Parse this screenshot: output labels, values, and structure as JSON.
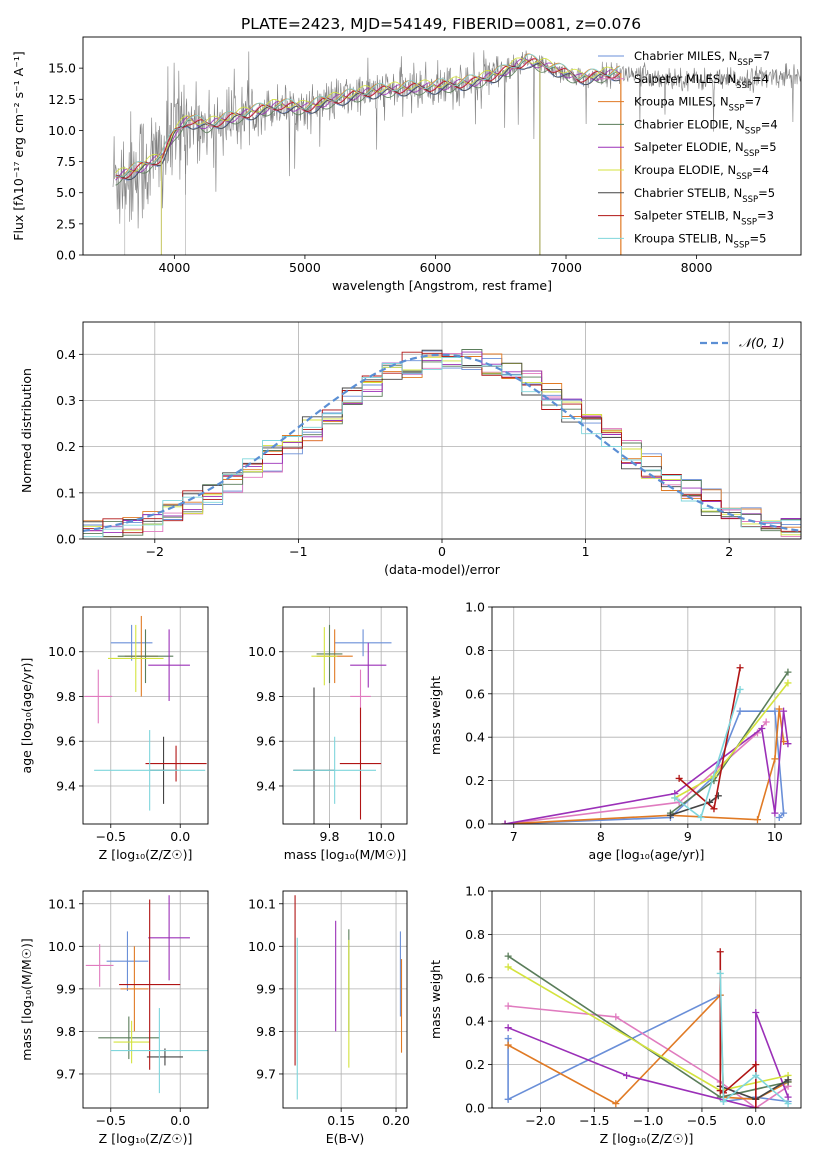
{
  "figure": {
    "title": "PLATE=2423, MJD=54149, FIBERID=0081, z=0.076"
  },
  "legend": [
    {
      "label": "Chabrier MILES, N",
      "sub": "SSP",
      "tail": "=7",
      "color": "#6a8fd8"
    },
    {
      "label": "Salpeter MILES, N",
      "sub": "SSP",
      "tail": "=4",
      "color": "#e07bbf"
    },
    {
      "label": "Kroupa MILES, N",
      "sub": "SSP",
      "tail": "=7",
      "color": "#e07a24"
    },
    {
      "label": "Chabrier ELODIE, N",
      "sub": "SSP",
      "tail": "=4",
      "color": "#5a7d5a"
    },
    {
      "label": "Salpeter ELODIE, N",
      "sub": "SSP",
      "tail": "=5",
      "color": "#9b30b8"
    },
    {
      "label": "Kroupa ELODIE, N",
      "sub": "SSP",
      "tail": "=4",
      "color": "#d4e33e"
    },
    {
      "label": "Chabrier STELIB, N",
      "sub": "SSP",
      "tail": "=5",
      "color": "#444444"
    },
    {
      "label": "Salpeter STELIB, N",
      "sub": "SSP",
      "tail": "=3",
      "color": "#b01515"
    },
    {
      "label": "Kroupa STELIB, N",
      "sub": "SSP",
      "tail": "=5",
      "color": "#7fd6dc"
    }
  ],
  "chart_data": [
    {
      "id": "spectrum",
      "type": "line",
      "xlabel": "wavelength [Angstrom, rest frame]",
      "ylabel": "Flux [fλ10⁻¹⁷ erg cm⁻² s⁻¹ A⁻¹]",
      "xlim": [
        3300,
        8800
      ],
      "ylim": [
        0,
        17.5
      ],
      "xticks": [
        4000,
        5000,
        6000,
        7000,
        8000
      ],
      "yticks": [
        0.0,
        2.5,
        5.0,
        7.5,
        10.0,
        12.5,
        15.0
      ],
      "grid": false,
      "legend_position": "right",
      "data_color": "#808080",
      "continuum_x": [
        3550,
        3700,
        3900,
        4000,
        4100,
        4250,
        4500,
        4800,
        5000,
        5200,
        5500,
        5800,
        6000,
        6300,
        6500,
        6700,
        6900,
        7100,
        7400,
        7800,
        8200,
        8800
      ],
      "continuum_y": [
        6.2,
        6.8,
        7.8,
        9.8,
        10.8,
        10.4,
        11.2,
        12.0,
        11.8,
        12.4,
        13.1,
        13.4,
        13.5,
        13.9,
        14.6,
        15.6,
        15.0,
        14.2,
        14.6,
        14.2,
        14.0,
        14.5
      ]
    },
    {
      "id": "residuals",
      "type": "histogram",
      "xlabel": "(data-model)/error",
      "ylabel": "Normed distribution",
      "xlim": [
        -2.5,
        2.5
      ],
      "ylim": [
        0,
        0.47
      ],
      "xticks": [
        -2,
        -1,
        0,
        1,
        2
      ],
      "yticks": [
        0.0,
        0.1,
        0.2,
        0.3,
        0.4
      ],
      "grid": true,
      "legend_position": "top-right",
      "reference_label": "𝒩(0, 1)",
      "reference_color": "#5b8fd4",
      "bins": 36,
      "bin_range": [
        -2.5,
        2.5
      ]
    },
    {
      "id": "age-vs-Z",
      "type": "scatter",
      "xlabel": "Z [log₁₀(Z/Z☉)]",
      "ylabel": "age  [log₁₀(age/yr)]",
      "xlim": [
        -0.7,
        0.2
      ],
      "ylim": [
        9.23,
        10.2
      ],
      "xticks": [
        -0.5,
        0.0
      ],
      "yticks": [
        9.4,
        9.6,
        9.8,
        10.0
      ],
      "grid": true,
      "points": [
        {
          "x": -0.35,
          "y": 10.04,
          "xerr": 0.15,
          "yerr": 0.08,
          "color": "#6a8fd8"
        },
        {
          "x": -0.59,
          "y": 9.8,
          "xerr": 0.1,
          "yerr": 0.12,
          "color": "#e07bbf"
        },
        {
          "x": -0.28,
          "y": 9.98,
          "xerr": 0.12,
          "yerr": 0.18,
          "color": "#e07a24"
        },
        {
          "x": -0.25,
          "y": 9.98,
          "xerr": 0.2,
          "yerr": 0.12,
          "color": "#5a7d5a"
        },
        {
          "x": -0.08,
          "y": 9.94,
          "xerr": 0.15,
          "yerr": 0.16,
          "color": "#9b30b8"
        },
        {
          "x": -0.32,
          "y": 9.97,
          "xerr": 0.2,
          "yerr": 0.15,
          "color": "#d4e33e"
        },
        {
          "x": -0.12,
          "y": 9.47,
          "xerr": 0.1,
          "yerr": 0.15,
          "color": "#444444"
        },
        {
          "x": -0.03,
          "y": 9.5,
          "xerr": 0.22,
          "yerr": 0.08,
          "color": "#b01515"
        },
        {
          "x": -0.22,
          "y": 9.47,
          "xerr": 0.4,
          "yerr": 0.18,
          "color": "#7fd6dc"
        }
      ]
    },
    {
      "id": "age-vs-mass",
      "type": "scatter",
      "xlabel": "mass [log₁₀(M/M☉)]",
      "ylabel": "",
      "xlim": [
        9.62,
        10.1
      ],
      "ylim": [
        9.23,
        10.2
      ],
      "xticks": [
        9.8,
        10.0
      ],
      "yticks": [
        9.4,
        9.6,
        9.8,
        10.0
      ],
      "grid": true,
      "points": [
        {
          "x": 9.93,
          "y": 10.04,
          "xerr": 0.11,
          "yerr": 0.06,
          "color": "#6a8fd8"
        },
        {
          "x": 9.92,
          "y": 9.8,
          "xerr": 0.04,
          "yerr": 0.12,
          "color": "#e07bbf"
        },
        {
          "x": 9.82,
          "y": 9.98,
          "xerr": 0.07,
          "yerr": 0.12,
          "color": "#e07a24"
        },
        {
          "x": 9.8,
          "y": 9.99,
          "xerr": 0.05,
          "yerr": 0.13,
          "color": "#5a7d5a"
        },
        {
          "x": 9.95,
          "y": 9.94,
          "xerr": 0.07,
          "yerr": 0.1,
          "color": "#9b30b8"
        },
        {
          "x": 9.78,
          "y": 9.98,
          "xerr": 0.05,
          "yerr": 0.13,
          "color": "#d4e33e"
        },
        {
          "x": 9.74,
          "y": 9.47,
          "xerr": 0.08,
          "yerr": 0.37,
          "color": "#444444"
        },
        {
          "x": 9.92,
          "y": 9.5,
          "xerr": 0.08,
          "yerr": 0.25,
          "color": "#b01515"
        },
        {
          "x": 9.82,
          "y": 9.47,
          "xerr": 0.16,
          "yerr": 0.15,
          "color": "#7fd6dc"
        }
      ]
    },
    {
      "id": "weight-vs-age",
      "type": "line",
      "xlabel": "age  [log₁₀(age/yr)]",
      "ylabel": "mass weight",
      "xlim": [
        6.75,
        10.3
      ],
      "ylim": [
        0,
        1.0
      ],
      "xticks": [
        7,
        8,
        9,
        10
      ],
      "yticks": [
        0.0,
        0.2,
        0.4,
        0.6,
        0.8,
        1.0
      ],
      "grid": true,
      "series": [
        {
          "color": "#6a8fd8",
          "x": [
            6.9,
            8.8,
            9.3,
            9.6,
            10.0,
            10.1,
            10.05
          ],
          "y": [
            0.0,
            0.03,
            0.22,
            0.52,
            0.52,
            0.05,
            0.03
          ]
        },
        {
          "color": "#e07bbf",
          "x": [
            6.9,
            8.9,
            9.8,
            9.9
          ],
          "y": [
            0.0,
            0.1,
            0.42,
            0.47
          ]
        },
        {
          "color": "#e07a24",
          "x": [
            6.9,
            8.8,
            9.8,
            10.0,
            10.05,
            10.1
          ],
          "y": [
            0.0,
            0.04,
            0.02,
            0.3,
            0.53,
            0.38
          ]
        },
        {
          "color": "#5a7d5a",
          "x": [
            8.8,
            9.3,
            10.15
          ],
          "y": [
            0.05,
            0.2,
            0.7
          ]
        },
        {
          "color": "#9b30b8",
          "x": [
            6.9,
            8.85,
            9.85,
            10.0,
            10.1,
            10.15
          ],
          "y": [
            0.0,
            0.14,
            0.44,
            0.05,
            0.52,
            0.37
          ]
        },
        {
          "color": "#d4e33e",
          "x": [
            8.85,
            9.3,
            10.15
          ],
          "y": [
            0.12,
            0.22,
            0.65
          ]
        },
        {
          "color": "#444444",
          "x": [
            8.8,
            9.25,
            9.35
          ],
          "y": [
            0.04,
            0.1,
            0.13
          ]
        },
        {
          "color": "#b01515",
          "x": [
            8.9,
            9.3,
            9.6
          ],
          "y": [
            0.21,
            0.07,
            0.72
          ]
        },
        {
          "color": "#7fd6dc",
          "x": [
            8.85,
            9.15,
            9.6
          ],
          "y": [
            0.12,
            0.03,
            0.62
          ]
        }
      ]
    },
    {
      "id": "mass-vs-Z",
      "type": "scatter",
      "xlabel": "Z [log₁₀(Z/Z☉)]",
      "ylabel": "mass [log₁₀(M/M☉)]",
      "xlim": [
        -0.7,
        0.2
      ],
      "ylim": [
        9.62,
        10.13
      ],
      "xticks": [
        -0.5,
        0.0
      ],
      "yticks": [
        9.7,
        9.8,
        9.9,
        10.0,
        10.1
      ],
      "grid": true,
      "points": [
        {
          "x": -0.38,
          "y": 9.965,
          "xerr": 0.15,
          "yerr": 0.07,
          "color": "#6a8fd8"
        },
        {
          "x": -0.58,
          "y": 9.955,
          "xerr": 0.1,
          "yerr": 0.05,
          "color": "#e07bbf"
        },
        {
          "x": -0.33,
          "y": 9.9,
          "xerr": 0.1,
          "yerr": 0.1,
          "color": "#e07a24"
        },
        {
          "x": -0.37,
          "y": 9.785,
          "xerr": 0.22,
          "yerr": 0.05,
          "color": "#5a7d5a"
        },
        {
          "x": -0.08,
          "y": 10.02,
          "xerr": 0.15,
          "yerr": 0.1,
          "color": "#9b30b8"
        },
        {
          "x": -0.35,
          "y": 9.775,
          "xerr": 0.13,
          "yerr": 0.05,
          "color": "#d4e33e"
        },
        {
          "x": -0.11,
          "y": 9.74,
          "xerr": 0.13,
          "yerr": 0.02,
          "color": "#444444"
        },
        {
          "x": -0.22,
          "y": 9.91,
          "xerr": 0.22,
          "yerr": 0.2,
          "color": "#b01515"
        },
        {
          "x": -0.15,
          "y": 9.755,
          "xerr": 0.35,
          "yerr": 0.1,
          "color": "#7fd6dc"
        }
      ]
    },
    {
      "id": "mass-vs-EBV",
      "type": "scatter",
      "xlabel": "E(B-V)",
      "ylabel": "",
      "xlim": [
        0.097,
        0.21
      ],
      "ylim": [
        9.62,
        10.13
      ],
      "xticks": [
        0.15,
        0.2
      ],
      "yticks": [
        9.7,
        9.8,
        9.9,
        10.0,
        10.1
      ],
      "grid": true,
      "points": [
        {
          "x": 0.108,
          "y": 9.92,
          "xerr": 0.0,
          "yerr": 0.2,
          "color": "#b01515"
        },
        {
          "x": 0.11,
          "y": 9.83,
          "xerr": 0.0,
          "yerr": 0.19,
          "color": "#7fd6dc"
        },
        {
          "x": 0.145,
          "y": 9.93,
          "xerr": 0.0,
          "yerr": 0.13,
          "color": "#9b30b8"
        },
        {
          "x": 0.157,
          "y": 9.92,
          "xerr": 0.0,
          "yerr": 0.12,
          "color": "#5a7d5a"
        },
        {
          "x": 0.157,
          "y": 9.865,
          "xerr": 0.0,
          "yerr": 0.15,
          "color": "#d4e33e"
        },
        {
          "x": 0.204,
          "y": 9.935,
          "xerr": 0.0,
          "yerr": 0.1,
          "color": "#6a8fd8"
        },
        {
          "x": 0.205,
          "y": 9.86,
          "xerr": 0.0,
          "yerr": 0.11,
          "color": "#e07a24"
        }
      ]
    },
    {
      "id": "weight-vs-Z",
      "type": "line",
      "xlabel": "Z [log₁₀(Z/Z☉)]",
      "ylabel": "mass weight",
      "xlim": [
        -2.45,
        0.42
      ],
      "ylim": [
        0,
        1.0
      ],
      "xticks": [
        -2.0,
        -1.5,
        -1.0,
        -0.5,
        0.0
      ],
      "yticks": [
        0.0,
        0.2,
        0.4,
        0.6,
        0.8,
        1.0
      ],
      "grid": true,
      "series": [
        {
          "color": "#6a8fd8",
          "x": [
            -2.3,
            -2.3,
            -0.33,
            -0.3,
            0.0,
            0.3
          ],
          "y": [
            0.32,
            0.04,
            0.52,
            0.03,
            0.05,
            0.03
          ]
        },
        {
          "color": "#e07bbf",
          "x": [
            -2.3,
            -1.3,
            -0.33,
            0.0,
            0.3
          ],
          "y": [
            0.47,
            0.42,
            0.12,
            0.0,
            0.1
          ]
        },
        {
          "color": "#e07a24",
          "x": [
            -2.3,
            -1.3,
            -0.33,
            -0.3,
            0.0,
            0.3
          ],
          "y": [
            0.29,
            0.02,
            0.52,
            0.05,
            0.04,
            0.12
          ]
        },
        {
          "color": "#5a7d5a",
          "x": [
            -2.3,
            -0.33,
            0.3
          ],
          "y": [
            0.7,
            0.05,
            0.12
          ]
        },
        {
          "color": "#9b30b8",
          "x": [
            -2.3,
            -1.2,
            0.0,
            0.0,
            0.3
          ],
          "y": [
            0.37,
            0.15,
            0.0,
            0.44,
            0.05
          ]
        },
        {
          "color": "#d4e33e",
          "x": [
            -2.3,
            -0.33,
            0.3
          ],
          "y": [
            0.65,
            0.08,
            0.15
          ]
        },
        {
          "color": "#444444",
          "x": [
            -0.33,
            0.0,
            0.3
          ],
          "y": [
            0.1,
            0.04,
            0.13
          ]
        },
        {
          "color": "#b01515",
          "x": [
            -0.33,
            -0.33,
            -0.3,
            0.0,
            0.0
          ],
          "y": [
            0.72,
            0.08,
            0.07,
            0.2,
            0.0
          ]
        },
        {
          "color": "#7fd6dc",
          "x": [
            -0.33,
            -0.3,
            0.0,
            0.3
          ],
          "y": [
            0.62,
            0.03,
            0.15,
            0.02
          ]
        }
      ]
    }
  ]
}
